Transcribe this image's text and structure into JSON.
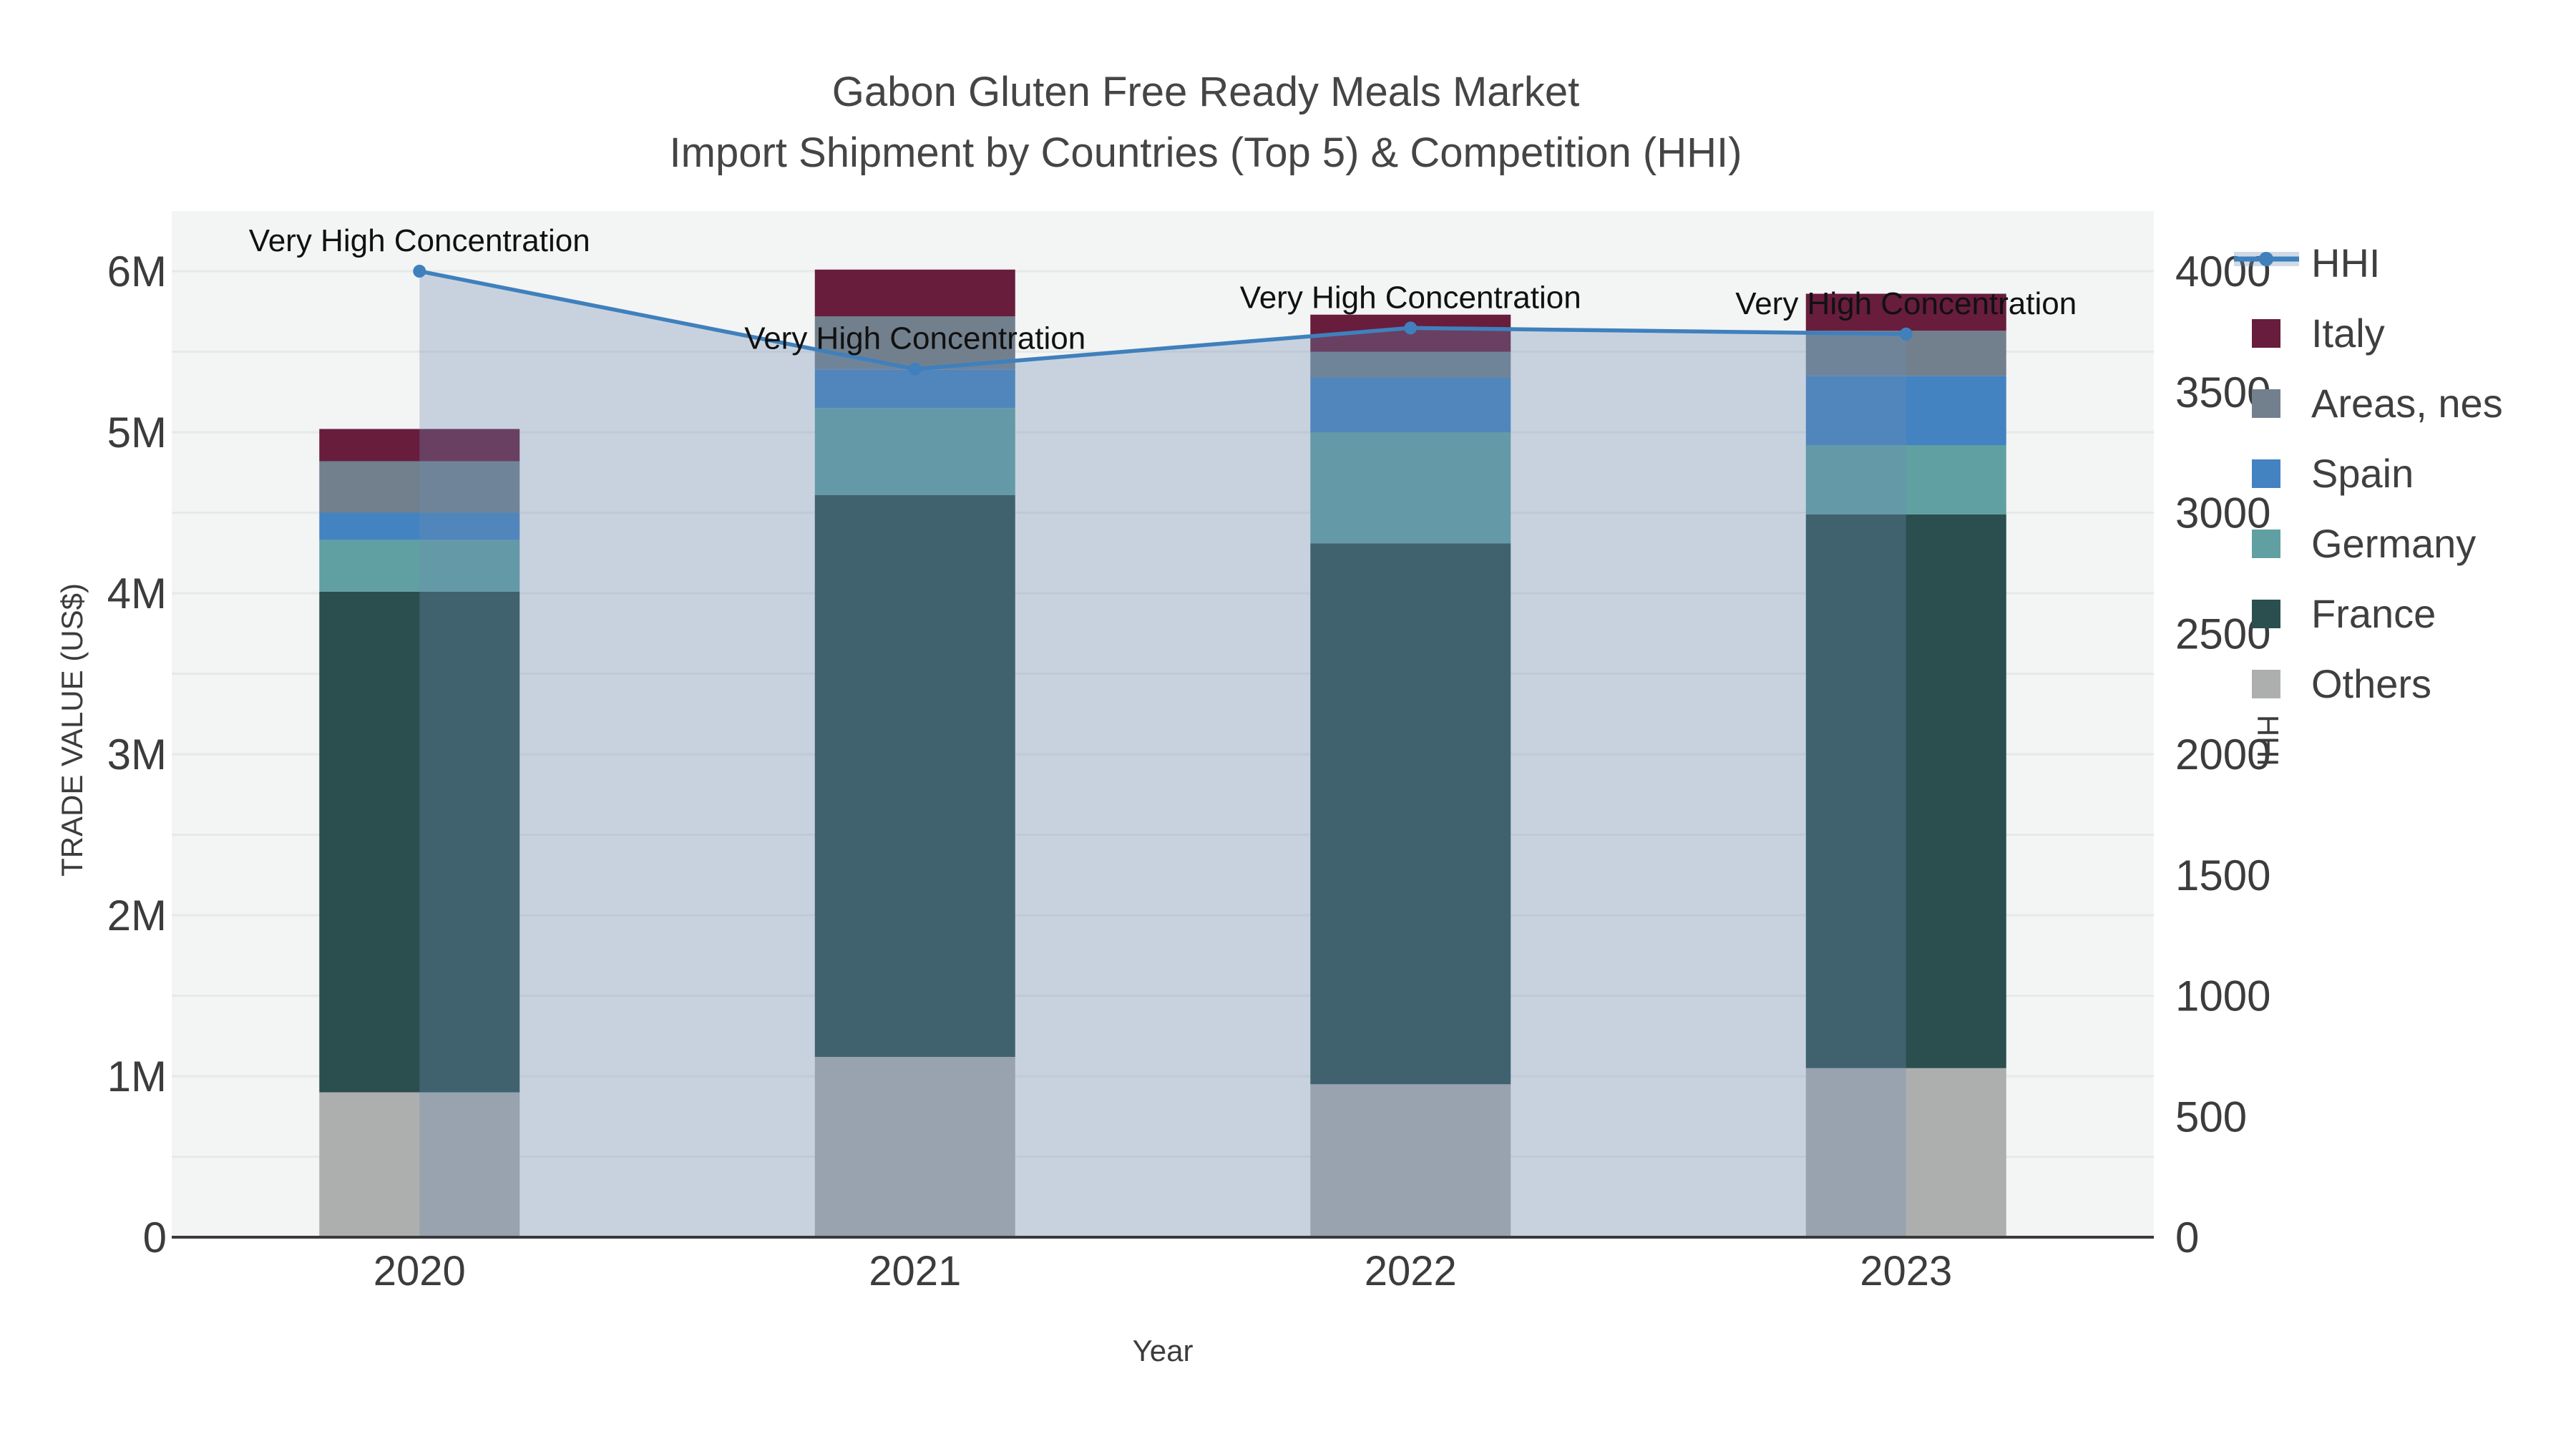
{
  "title": {
    "line1": "Gabon Gluten Free Ready Meals Market",
    "line2": "Import Shipment by Countries (Top 5) & Competition (HHI)"
  },
  "chart_data": {
    "type": "stacked-bar+line",
    "categories": [
      "2020",
      "2021",
      "2022",
      "2023"
    ],
    "bar_value_unit": "US$",
    "bar_series": [
      {
        "name": "Others",
        "color": "#ADAFAE",
        "values": [
          900000,
          1120000,
          950000,
          1050000
        ]
      },
      {
        "name": "France",
        "color": "#2A4F4E",
        "values": [
          3110000,
          3490000,
          3360000,
          3440000
        ]
      },
      {
        "name": "Germany",
        "color": "#60A0A2",
        "values": [
          320000,
          540000,
          690000,
          430000
        ]
      },
      {
        "name": "Spain",
        "color": "#4483C2",
        "values": [
          170000,
          240000,
          340000,
          430000
        ]
      },
      {
        "name": "Areas, nes",
        "color": "#72808E",
        "values": [
          320000,
          330000,
          160000,
          280000
        ]
      },
      {
        "name": "Italy",
        "color": "#681D3D",
        "values": [
          200000,
          290000,
          230000,
          230000
        ]
      }
    ],
    "bar_totals": [
      5020000,
      6010000,
      5730000,
      5860000
    ],
    "line_series": {
      "name": "HHI",
      "color": "#3F80BD",
      "area_fill": "rgba(110,140,178,0.32)",
      "values": [
        4000,
        3595,
        3765,
        3740
      ]
    },
    "annotations": [
      {
        "text": "Very High Concentration",
        "category": "2020"
      },
      {
        "text": "Very High Concentration",
        "category": "2021"
      },
      {
        "text": "Very High Concentration",
        "category": "2022"
      },
      {
        "text": "Very High Concentration",
        "category": "2023"
      }
    ],
    "y_left": {
      "title": "TRADE VALUE (US$)",
      "tick_labels": [
        "0",
        "1M",
        "2M",
        "3M",
        "4M",
        "5M",
        "6M"
      ],
      "tick_values": [
        0,
        1000000,
        2000000,
        3000000,
        4000000,
        5000000,
        6000000
      ],
      "grid_step": 500000,
      "range_max": 6400000
    },
    "y_right": {
      "title": "HHI",
      "tick_labels": [
        "0",
        "500",
        "1000",
        "1500",
        "2000",
        "2500",
        "3000",
        "3500",
        "4000"
      ],
      "tick_values": [
        0,
        500,
        1000,
        1500,
        2000,
        2500,
        3000,
        3500,
        4000
      ],
      "range_max": 4267
    },
    "x_axis": {
      "title": "Year"
    },
    "legend": [
      {
        "label": "HHI",
        "type": "line",
        "color": "#3F80BD"
      },
      {
        "label": "Italy",
        "type": "swatch",
        "color": "#681D3D"
      },
      {
        "label": "Areas, nes",
        "type": "swatch",
        "color": "#72808E"
      },
      {
        "label": "Spain",
        "type": "swatch",
        "color": "#4483C2"
      },
      {
        "label": "Germany",
        "type": "swatch",
        "color": "#60A0A2"
      },
      {
        "label": "France",
        "type": "swatch",
        "color": "#2A4F4E"
      },
      {
        "label": "Others",
        "type": "swatch",
        "color": "#ADAFAE"
      }
    ],
    "plot_bg_color": "#F3F4F4",
    "grid_color": "#E7E8E8",
    "axis_line_color": "#3A3A3A",
    "text_color": "#3C3C3C"
  }
}
